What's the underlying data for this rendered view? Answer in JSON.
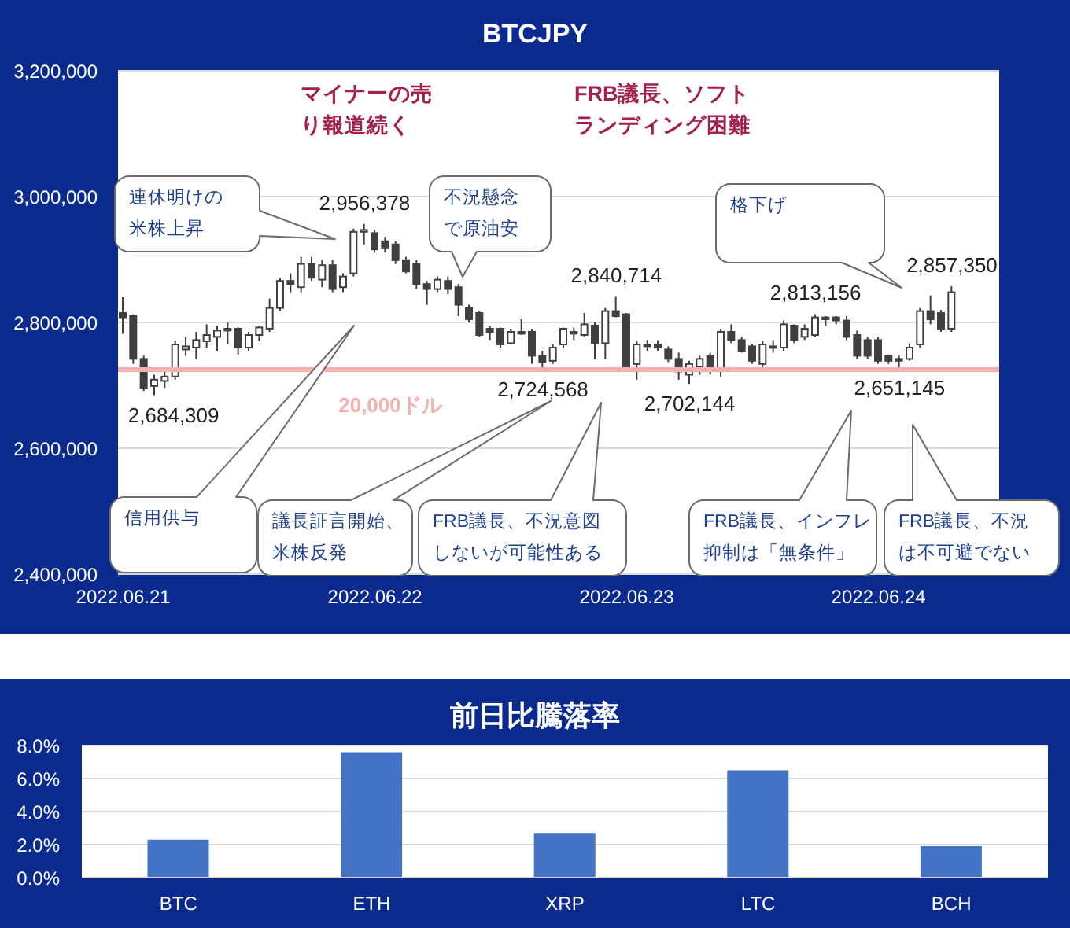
{
  "chart_data": [
    {
      "type": "candlestick",
      "title": "BTCJPY",
      "x": [
        "2022-06-21T00:00",
        "2022-06-21T01:00",
        "2022-06-21T02:00",
        "2022-06-21T03:00",
        "2022-06-21T04:00",
        "2022-06-21T05:00",
        "2022-06-21T06:00",
        "2022-06-21T07:00",
        "2022-06-21T08:00",
        "2022-06-21T09:00",
        "2022-06-21T10:00",
        "2022-06-21T11:00",
        "2022-06-21T12:00",
        "2022-06-21T13:00",
        "2022-06-21T14:00",
        "2022-06-21T15:00",
        "2022-06-21T16:00",
        "2022-06-21T17:00",
        "2022-06-21T18:00",
        "2022-06-21T19:00",
        "2022-06-21T20:00",
        "2022-06-21T21:00",
        "2022-06-21T22:00",
        "2022-06-21T23:00",
        "2022-06-22T00:00",
        "2022-06-22T01:00",
        "2022-06-22T02:00",
        "2022-06-22T03:00",
        "2022-06-22T04:00",
        "2022-06-22T05:00",
        "2022-06-22T06:00",
        "2022-06-22T07:00",
        "2022-06-22T08:00",
        "2022-06-22T09:00",
        "2022-06-22T10:00",
        "2022-06-22T11:00",
        "2022-06-22T12:00",
        "2022-06-22T13:00",
        "2022-06-22T14:00",
        "2022-06-22T15:00",
        "2022-06-22T16:00",
        "2022-06-22T17:00",
        "2022-06-22T18:00",
        "2022-06-22T19:00",
        "2022-06-22T20:00",
        "2022-06-22T21:00",
        "2022-06-22T22:00",
        "2022-06-22T23:00",
        "2022-06-23T00:00",
        "2022-06-23T01:00",
        "2022-06-23T02:00",
        "2022-06-23T03:00",
        "2022-06-23T04:00",
        "2022-06-23T05:00",
        "2022-06-23T06:00",
        "2022-06-23T07:00",
        "2022-06-23T08:00",
        "2022-06-23T09:00",
        "2022-06-23T10:00",
        "2022-06-23T11:00",
        "2022-06-23T12:00",
        "2022-06-23T13:00",
        "2022-06-23T14:00",
        "2022-06-23T15:00",
        "2022-06-23T16:00",
        "2022-06-23T17:00",
        "2022-06-23T18:00",
        "2022-06-23T19:00",
        "2022-06-23T20:00",
        "2022-06-23T21:00",
        "2022-06-23T22:00",
        "2022-06-23T23:00",
        "2022-06-24T00:00",
        "2022-06-24T01:00",
        "2022-06-24T02:00",
        "2022-06-24T03:00",
        "2022-06-24T04:00",
        "2022-06-24T05:00",
        "2022-06-24T06:00",
        "2022-06-24T07:00"
      ],
      "ohlc": [
        [
          2815000,
          2840000,
          2782000,
          2808000
        ],
        [
          2810000,
          2813000,
          2734000,
          2742000
        ],
        [
          2742000,
          2747000,
          2691000,
          2696000
        ],
        [
          2699000,
          2717000,
          2684309,
          2709000
        ],
        [
          2707000,
          2722000,
          2696000,
          2714000
        ],
        [
          2714000,
          2770000,
          2709000,
          2765000
        ],
        [
          2757000,
          2777000,
          2747000,
          2762000
        ],
        [
          2760000,
          2785000,
          2742000,
          2772000
        ],
        [
          2770000,
          2797000,
          2760000,
          2780000
        ],
        [
          2777000,
          2795000,
          2755000,
          2787000
        ],
        [
          2787000,
          2800000,
          2765000,
          2790000
        ],
        [
          2790000,
          2792000,
          2749000,
          2760000
        ],
        [
          2760000,
          2785000,
          2755000,
          2780000
        ],
        [
          2780000,
          2795000,
          2770000,
          2792000
        ],
        [
          2790000,
          2838000,
          2785000,
          2823000
        ],
        [
          2823000,
          2871000,
          2818000,
          2866000
        ],
        [
          2866000,
          2878000,
          2848000,
          2861000
        ],
        [
          2856000,
          2904000,
          2848000,
          2893000
        ],
        [
          2893000,
          2904000,
          2866000,
          2871000
        ],
        [
          2868000,
          2899000,
          2856000,
          2891000
        ],
        [
          2891000,
          2899000,
          2848000,
          2853000
        ],
        [
          2856000,
          2878000,
          2848000,
          2873000
        ],
        [
          2878000,
          2949000,
          2873000,
          2944000
        ],
        [
          2944000,
          2956378,
          2924000,
          2947000
        ],
        [
          2942000,
          2947000,
          2911000,
          2916000
        ],
        [
          2929000,
          2936000,
          2911000,
          2919000
        ],
        [
          2924000,
          2929000,
          2893000,
          2899000
        ],
        [
          2899000,
          2904000,
          2878000,
          2881000
        ],
        [
          2893000,
          2899000,
          2853000,
          2861000
        ],
        [
          2861000,
          2866000,
          2828000,
          2853000
        ],
        [
          2853000,
          2873000,
          2848000,
          2868000
        ],
        [
          2866000,
          2873000,
          2845000,
          2853000
        ],
        [
          2856000,
          2861000,
          2810000,
          2828000
        ],
        [
          2823000,
          2828000,
          2800000,
          2805000
        ],
        [
          2815000,
          2818000,
          2777000,
          2780000
        ],
        [
          2790000,
          2795000,
          2772000,
          2785000
        ],
        [
          2790000,
          2792000,
          2760000,
          2765000
        ],
        [
          2767000,
          2790000,
          2765000,
          2785000
        ],
        [
          2785000,
          2805000,
          2780000,
          2782000
        ],
        [
          2785000,
          2790000,
          2734000,
          2747000
        ],
        [
          2747000,
          2755000,
          2724568,
          2737000
        ],
        [
          2739000,
          2765000,
          2734000,
          2760000
        ],
        [
          2765000,
          2792000,
          2760000,
          2790000
        ],
        [
          2782000,
          2792000,
          2772000,
          2785000
        ],
        [
          2780000,
          2815000,
          2777000,
          2797000
        ],
        [
          2795000,
          2800000,
          2742000,
          2767000
        ],
        [
          2767000,
          2823000,
          2742000,
          2818000
        ],
        [
          2818000,
          2840714,
          2808000,
          2810000
        ],
        [
          2813000,
          2815000,
          2727000,
          2729000
        ],
        [
          2734000,
          2770000,
          2709000,
          2765000
        ],
        [
          2765000,
          2772000,
          2755000,
          2762000
        ],
        [
          2765000,
          2772000,
          2755000,
          2760000
        ],
        [
          2757000,
          2762000,
          2737000,
          2742000
        ],
        [
          2742000,
          2752000,
          2709000,
          2722000
        ],
        [
          2717000,
          2739000,
          2702144,
          2734000
        ],
        [
          2729000,
          2747000,
          2717000,
          2742000
        ],
        [
          2747000,
          2752000,
          2717000,
          2729000
        ],
        [
          2727000,
          2790000,
          2714000,
          2785000
        ],
        [
          2785000,
          2797000,
          2767000,
          2772000
        ],
        [
          2772000,
          2777000,
          2752000,
          2755000
        ],
        [
          2762000,
          2765000,
          2734000,
          2739000
        ],
        [
          2734000,
          2770000,
          2729000,
          2765000
        ],
        [
          2762000,
          2772000,
          2752000,
          2760000
        ],
        [
          2760000,
          2803000,
          2755000,
          2797000
        ],
        [
          2795000,
          2797000,
          2767000,
          2772000
        ],
        [
          2777000,
          2797000,
          2772000,
          2790000
        ],
        [
          2780000,
          2813156,
          2777000,
          2808000
        ],
        [
          2808000,
          2810000,
          2795000,
          2805000
        ],
        [
          2808000,
          2810000,
          2797000,
          2803000
        ],
        [
          2803000,
          2810000,
          2772000,
          2777000
        ],
        [
          2780000,
          2787000,
          2742000,
          2747000
        ],
        [
          2772000,
          2777000,
          2742000,
          2747000
        ],
        [
          2772000,
          2777000,
          2734000,
          2739000
        ],
        [
          2747000,
          2749000,
          2734000,
          2739000
        ],
        [
          2742000,
          2747000,
          2727000,
          2739000
        ],
        [
          2742000,
          2767000,
          2739000,
          2760000
        ],
        [
          2765000,
          2823000,
          2760000,
          2818000
        ],
        [
          2818000,
          2843000,
          2797000,
          2805000
        ],
        [
          2815000,
          2820000,
          2785000,
          2790000
        ],
        [
          2790000,
          2857350,
          2785000,
          2848000
        ]
      ],
      "color": "#404040",
      "xlim": [
        "2022-06-20T23:30",
        "2022-06-24T11:30"
      ],
      "xticks": [
        {
          "value": "2022-06-21",
          "label": "2022.06.21"
        },
        {
          "value": "2022-06-22",
          "label": "2022.06.22"
        },
        {
          "value": "2022-06-23",
          "label": "2022.06.23"
        },
        {
          "value": "2022-06-24",
          "label": "2022.06.24"
        }
      ],
      "ylim": [
        2400000,
        3200000
      ],
      "yticks": [
        {
          "value": 2400000,
          "label": "2,400,000"
        },
        {
          "value": 2600000,
          "label": "2,600,000"
        },
        {
          "value": 2800000,
          "label": "2,800,000"
        },
        {
          "value": 3000000,
          "label": "3,000,000"
        },
        {
          "value": 3200000,
          "label": "3,200,000"
        }
      ],
      "grid": "y",
      "ref_lines": [
        {
          "axis": "y",
          "value": 2725000,
          "label": "20,000ドル",
          "color": "#f5b0b0"
        }
      ],
      "annotations": [
        "マイナーの売り報道続く",
        "FRB議長、ソフトランディング困難",
        "連休明けの米株上昇",
        "不況懸念で原油安",
        "格下げ",
        "信用供与",
        "議長証言開始、米株反発",
        "FRB議長、不況意図しないが可能性ある",
        "FRB議長、インフレ抑制は「無条件」",
        "FRB議長、不況は不可避でない",
        {
          "text": "2,684,309",
          "x": "2022-06-21T03:00",
          "y": 2684309
        },
        {
          "text": "2,956,378",
          "x": "2022-06-21T23:00",
          "y": 2956378
        },
        {
          "text": "2,724,568",
          "x": "2022-06-22T16:00",
          "y": 2724568
        },
        {
          "text": "2,840,714",
          "x": "2022-06-22T23:00",
          "y": 2840714
        },
        {
          "text": "2,702,144",
          "x": "2022-06-23T06:00",
          "y": 2702144
        },
        {
          "text": "2,813,156",
          "x": "2022-06-23T18:00",
          "y": 2813156
        },
        {
          "text": "2,651,145",
          "x": "2022-06-24T02:00",
          "y": 2727000
        },
        {
          "text": "2,857,350",
          "x": "2022-06-24T07:00",
          "y": 2857350
        }
      ]
    },
    {
      "type": "bar",
      "title": "前日比騰落率",
      "categories": [
        "BTC",
        "ETH",
        "XRP",
        "LTC",
        "BCH"
      ],
      "values": [
        2.3,
        7.6,
        2.7,
        6.5,
        1.9
      ],
      "color": "#4472c4",
      "ylim": [
        0,
        8
      ],
      "yticks": [
        {
          "value": 0,
          "label": "0.0%"
        },
        {
          "value": 2,
          "label": "2.0%"
        },
        {
          "value": 4,
          "label": "4.0%"
        },
        {
          "value": 6,
          "label": "6.0%"
        },
        {
          "value": 8,
          "label": "8.0%"
        }
      ],
      "grid": "y"
    }
  ]
}
